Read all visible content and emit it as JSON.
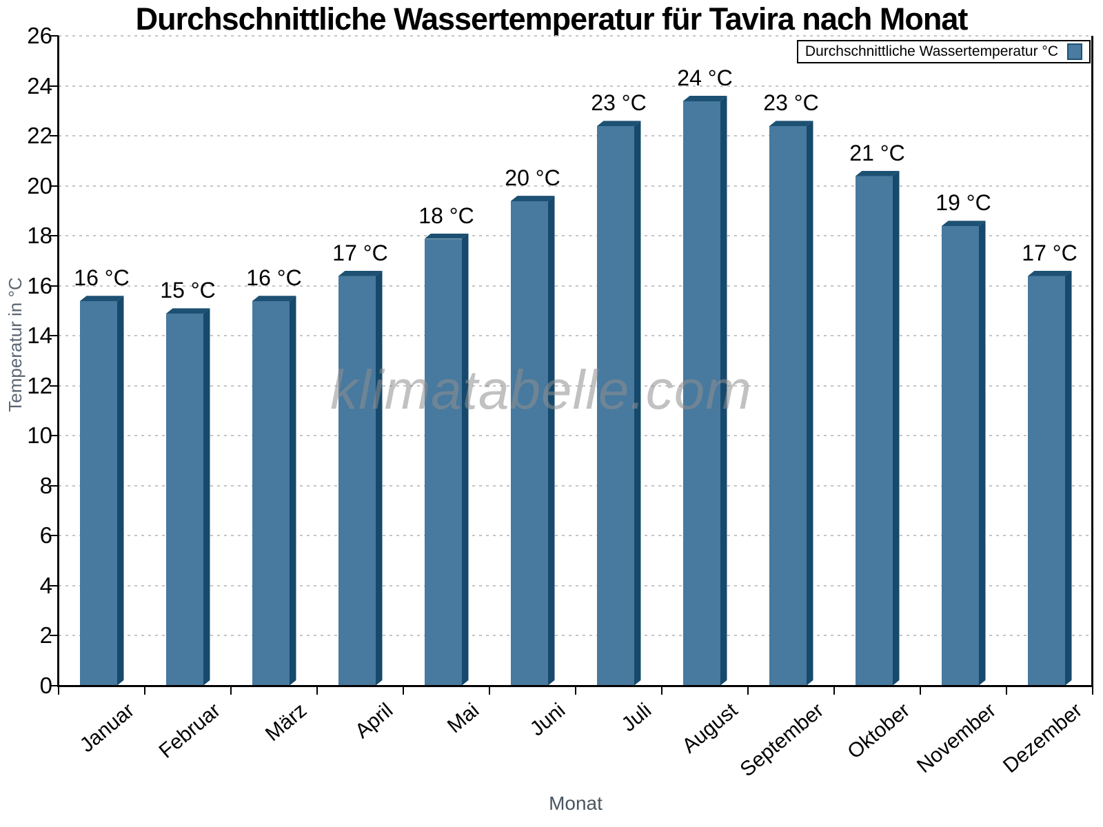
{
  "chart_data": {
    "type": "bar",
    "title": "Durchschnittliche Wassertemperatur für Tavira nach Monat",
    "xlabel": "Monat",
    "ylabel": "Temperatur in °C",
    "categories": [
      "Januar",
      "Februar",
      "März",
      "April",
      "Mai",
      "Juni",
      "Juli",
      "August",
      "September",
      "Oktober",
      "November",
      "Dezember"
    ],
    "values": [
      15.6,
      15.1,
      15.6,
      16.6,
      18.1,
      19.6,
      22.6,
      23.6,
      22.6,
      20.6,
      18.6,
      16.6
    ],
    "bar_labels": [
      "16 °C",
      "15 °C",
      "16 °C",
      "17 °C",
      "18 °C",
      "20 °C",
      "23 °C",
      "24 °C",
      "23 °C",
      "21 °C",
      "19 °C",
      "17 °C"
    ],
    "ylim": [
      0,
      26
    ],
    "yticks": [
      0,
      2,
      4,
      6,
      8,
      10,
      12,
      14,
      16,
      18,
      20,
      22,
      24,
      26
    ],
    "grid": "dotted-horizontal",
    "legend": {
      "label": "Durchschnittliche Wassertemperatur °C",
      "position": "top-right"
    },
    "watermark": "klimatabelle.com",
    "colors": {
      "bar_face": "#48799e",
      "bar_top": "#1d5173",
      "bar_side": "#16496c",
      "legend_swatch": "#4a7ba0",
      "legend_swatch_border": "#1d5173",
      "grid": "#c4c4c4",
      "axis": "#000000",
      "axis_title": "#5a6673",
      "watermark_text": "#8f8f8f"
    }
  }
}
